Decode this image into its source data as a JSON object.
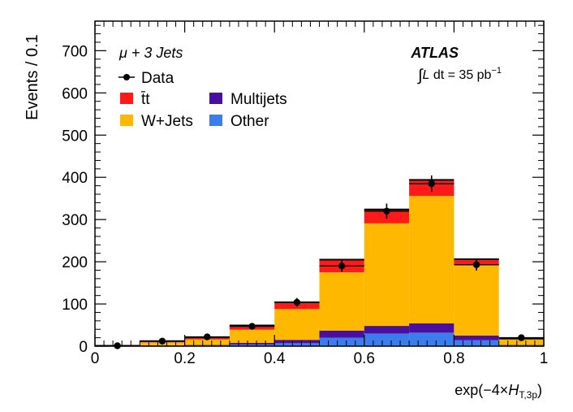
{
  "chart_data": {
    "type": "bar",
    "stacked": true,
    "title": "",
    "xlabel_prefix": "exp(−4×",
    "xlabel_var": "H",
    "xlabel_sub": "T,3p",
    "xlabel_suffix": ")",
    "ylabel": "Events / 0.1",
    "xlim": [
      0,
      1
    ],
    "ylim": [
      0,
      770
    ],
    "x_ticks": [
      "0",
      "0.2",
      "0.4",
      "0.6",
      "0.8",
      "1"
    ],
    "x_tick_values": [
      0,
      0.2,
      0.4,
      0.6,
      0.8,
      1.0
    ],
    "y_ticks": [
      "0",
      "100",
      "200",
      "300",
      "400",
      "500",
      "600",
      "700"
    ],
    "y_tick_values": [
      0,
      100,
      200,
      300,
      400,
      500,
      600,
      700
    ],
    "bin_edges": [
      0,
      0.1,
      0.2,
      0.3,
      0.4,
      0.5,
      0.6,
      0.7,
      0.8,
      0.9,
      1.0
    ],
    "series": [
      {
        "name": "Other",
        "color": "#3b7ded",
        "values": [
          0,
          1,
          2,
          4,
          7,
          20,
          30,
          32,
          14,
          2
        ]
      },
      {
        "name": "Multijets",
        "color": "#4b0fa0",
        "values": [
          0,
          1,
          1,
          4,
          8,
          17,
          18,
          22,
          11,
          1
        ]
      },
      {
        "name": "W+Jets",
        "color": "#ffb800",
        "values": [
          1,
          7,
          13,
          31,
          73,
          138,
          243,
          302,
          168,
          13
        ]
      },
      {
        "name": "t̄t",
        "color": "#ff1a1a",
        "values": [
          0,
          3,
          5,
          10,
          16,
          30,
          33,
          38,
          13,
          2
        ]
      }
    ],
    "data": {
      "name": "Data",
      "x": [
        0.05,
        0.15,
        0.25,
        0.35,
        0.45,
        0.55,
        0.65,
        0.75,
        0.85,
        0.95
      ],
      "y": [
        1,
        12,
        22,
        47,
        104,
        190,
        320,
        385,
        193,
        20
      ],
      "err": [
        1,
        3.5,
        4.7,
        6.9,
        10.2,
        13.8,
        17.9,
        19.6,
        13.9,
        4.5
      ]
    },
    "legend_order": [
      "Data",
      "t̄t",
      "Multijets",
      "W+Jets",
      "Other"
    ],
    "annotations": {
      "channel": "μ + 3 Jets",
      "experiment": "ATLAS",
      "luminosity_integral": "∫",
      "luminosity_L": "L",
      "luminosity_text": " dt = 35 pb",
      "luminosity_exp": "−1"
    }
  }
}
